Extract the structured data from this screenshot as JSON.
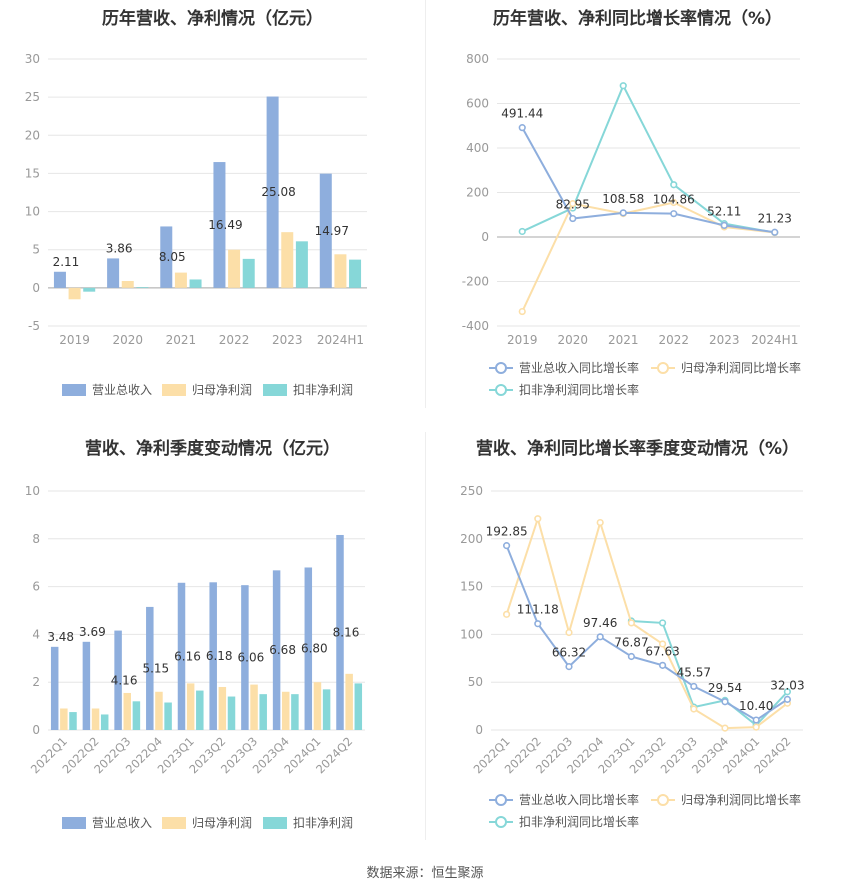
{
  "colors": {
    "revenue": "#8eaedd",
    "parent_profit": "#fcdfa8",
    "deducted_profit": "#86d7d8",
    "grid": "#e6e6e6",
    "axis_text": "#999999",
    "label_text": "#333333"
  },
  "source": "数据来源：恒生聚源",
  "chart_data": [
    {
      "type": "bar",
      "title": "历年营收、净利情况（亿元）",
      "categories": [
        "2019",
        "2020",
        "2021",
        "2022",
        "2023",
        "2024H1"
      ],
      "ylim": [
        -5,
        30
      ],
      "yticks": [
        30,
        25,
        20,
        15,
        10,
        5,
        0,
        -5
      ],
      "series": [
        {
          "name": "营业总收入",
          "values": [
            2.11,
            3.86,
            8.05,
            16.49,
            25.08,
            14.97
          ],
          "labels": [
            "2.11",
            "3.86",
            "8.05",
            "16.49",
            "25.08",
            "14.97"
          ]
        },
        {
          "name": "归母净利润",
          "values": [
            -1.5,
            0.9,
            2.0,
            5.0,
            7.3,
            4.4
          ]
        },
        {
          "name": "扣非净利润",
          "values": [
            -0.5,
            0.1,
            1.1,
            3.8,
            6.1,
            3.7
          ]
        }
      ],
      "legend": "bottom"
    },
    {
      "type": "line",
      "title": "历年营收、净利同比增长率情况（%）",
      "categories": [
        "2019",
        "2020",
        "2021",
        "2022",
        "2023",
        "2024H1"
      ],
      "ylim": [
        -400,
        800
      ],
      "yticks": [
        800,
        600,
        400,
        200,
        0,
        -200,
        -400
      ],
      "series": [
        {
          "name": "营业总收入同比增长率",
          "values": [
            491.44,
            82.95,
            108.58,
            104.86,
            52.11,
            21.23
          ],
          "labels": [
            "491.44",
            "82.95",
            "108.58",
            "104.86",
            "52.11",
            "21.23"
          ]
        },
        {
          "name": "归母净利润同比增长率",
          "values": [
            -335,
            150,
            105,
            155,
            45,
            20
          ]
        },
        {
          "name": "扣非净利润同比增长率",
          "values": [
            25,
            130,
            680,
            235,
            60,
            20
          ]
        }
      ],
      "legend": "bottom"
    },
    {
      "type": "bar",
      "title": "营收、净利季度变动情况（亿元）",
      "categories": [
        "2022Q1",
        "2022Q2",
        "2022Q3",
        "2022Q4",
        "2023Q1",
        "2023Q2",
        "2023Q3",
        "2023Q4",
        "2024Q1",
        "2024Q2"
      ],
      "ylim": [
        0,
        10
      ],
      "yticks": [
        10,
        8,
        6,
        4,
        2,
        0
      ],
      "series": [
        {
          "name": "营业总收入",
          "values": [
            3.48,
            3.69,
            4.16,
            5.15,
            6.16,
            6.18,
            6.06,
            6.68,
            6.8,
            8.16
          ],
          "labels": [
            "3.48",
            "3.69",
            "4.16",
            "5.15",
            "6.16",
            "6.18",
            "6.06",
            "6.68",
            "6.80",
            "8.16"
          ]
        },
        {
          "name": "归母净利润",
          "values": [
            0.9,
            0.9,
            1.55,
            1.6,
            1.95,
            1.8,
            1.9,
            1.6,
            2.0,
            2.35
          ]
        },
        {
          "name": "扣非净利润",
          "values": [
            0.75,
            0.65,
            1.2,
            1.15,
            1.65,
            1.4,
            1.5,
            1.5,
            1.7,
            1.95
          ]
        }
      ],
      "legend": "bottom"
    },
    {
      "type": "line",
      "title": "营收、净利同比增长率季度变动情况（%）",
      "categories": [
        "2022Q1",
        "2022Q2",
        "2022Q3",
        "2022Q4",
        "2023Q1",
        "2023Q2",
        "2023Q3",
        "2023Q4",
        "2024Q1",
        "2024Q2"
      ],
      "ylim": [
        0,
        250
      ],
      "yticks": [
        250,
        200,
        150,
        100,
        50,
        0
      ],
      "series": [
        {
          "name": "营业总收入同比增长率",
          "values": [
            192.85,
            111.18,
            66.32,
            97.46,
            76.87,
            67.63,
            45.57,
            29.54,
            10.4,
            32.03
          ],
          "labels": [
            "192.85",
            "111.18",
            "66.32",
            "97.46",
            "76.87",
            "67.63",
            "45.57",
            "29.54",
            "10.40",
            "32.03"
          ]
        },
        {
          "name": "归母净利润同比增长率",
          "values": [
            121,
            221,
            102,
            217,
            112,
            90,
            22,
            2,
            3,
            28
          ]
        },
        {
          "name": "扣非净利润同比增长率",
          "values": [
            null,
            null,
            null,
            null,
            114,
            112,
            24,
            31,
            5,
            40
          ]
        }
      ],
      "legend": "bottom"
    }
  ]
}
